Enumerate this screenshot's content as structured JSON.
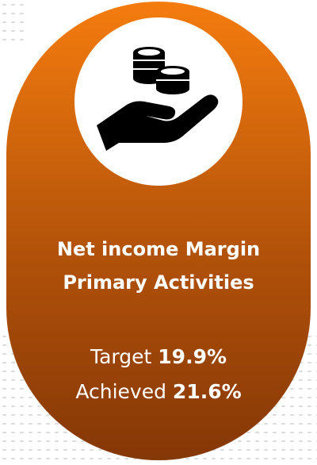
{
  "card": {
    "title_lines": [
      "Net income  Margin",
      "Primary Activities"
    ],
    "metrics": [
      {
        "label": "Target",
        "value": "19.9%"
      },
      {
        "label": "Achieved",
        "value": "21.6%"
      }
    ]
  }
}
